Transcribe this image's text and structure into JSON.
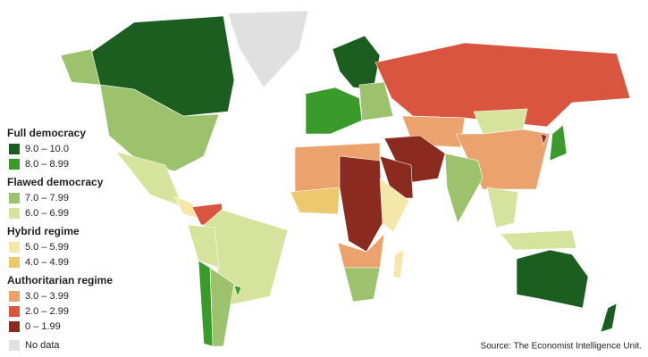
{
  "legend": {
    "groups": [
      {
        "title": "Full democracy",
        "items": [
          {
            "label": "9.0 – 10.0",
            "color": "#1b5e20"
          },
          {
            "label": "8.0 – 8.99",
            "color": "#3a9a2a"
          }
        ]
      },
      {
        "title": "Flawed democracy",
        "items": [
          {
            "label": "7.0 – 7.99",
            "color": "#9cc26e"
          },
          {
            "label": "6.0 – 6.99",
            "color": "#d6e39c"
          }
        ]
      },
      {
        "title": "Hybrid regime",
        "items": [
          {
            "label": "5.0 – 5.99",
            "color": "#f5e7aa"
          },
          {
            "label": "4.0 – 4.99",
            "color": "#eec86c"
          }
        ]
      },
      {
        "title": "Authoritarian regime",
        "items": [
          {
            "label": "3.0 – 3.99",
            "color": "#eba26c"
          },
          {
            "label": "2.0 – 2.99",
            "color": "#d9553f"
          },
          {
            "label": "0 – 1.99",
            "color": "#8b2a1f"
          }
        ]
      }
    ],
    "no_data": {
      "label": "No data",
      "color": "#e0e0e0"
    }
  },
  "source": "Source: The Economist Intelligence Unit."
}
